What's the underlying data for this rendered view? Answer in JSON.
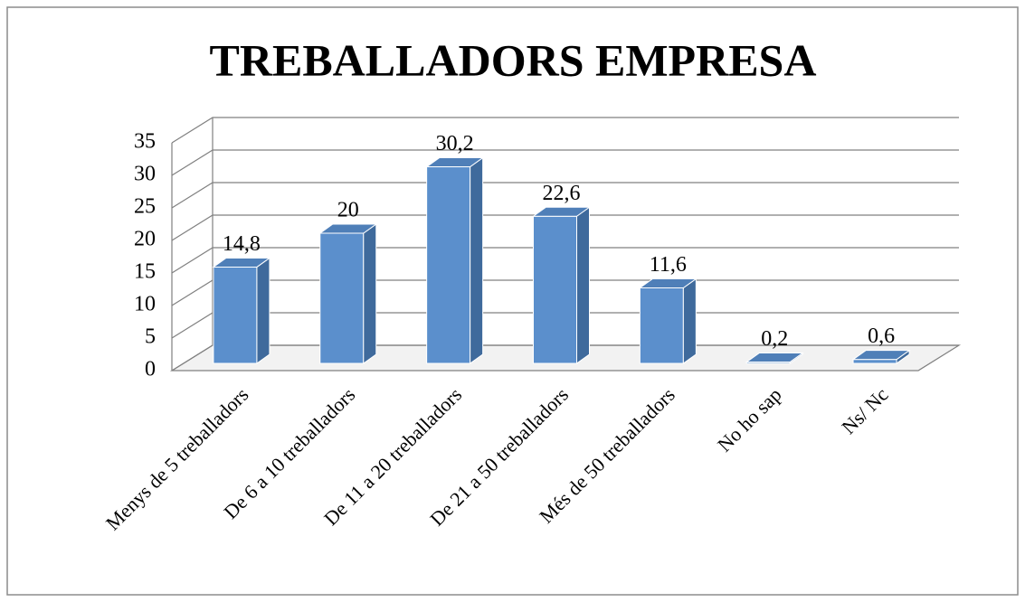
{
  "chart_data": {
    "type": "bar",
    "title": "TREBALLADORS EMPRESA",
    "categories": [
      "Menys de 5 treballadors",
      "De 6 a 10 treballadors",
      "De 11 a 20 treballadors",
      "De 21 a 50 treballadors",
      "Més de 50 treballadors",
      "No ho sap",
      "Ns/ Nc"
    ],
    "values": [
      14.8,
      20,
      30.2,
      22.6,
      11.6,
      0.2,
      0.6
    ],
    "value_labels": [
      "14,8",
      "20",
      "30,2",
      "22,6",
      "11,6",
      "0,2",
      "0,6"
    ],
    "color": "#5b8fcc",
    "ylim": [
      0,
      35
    ],
    "yticks": [
      0,
      5,
      10,
      15,
      20,
      25,
      30,
      35
    ],
    "grid": true
  }
}
